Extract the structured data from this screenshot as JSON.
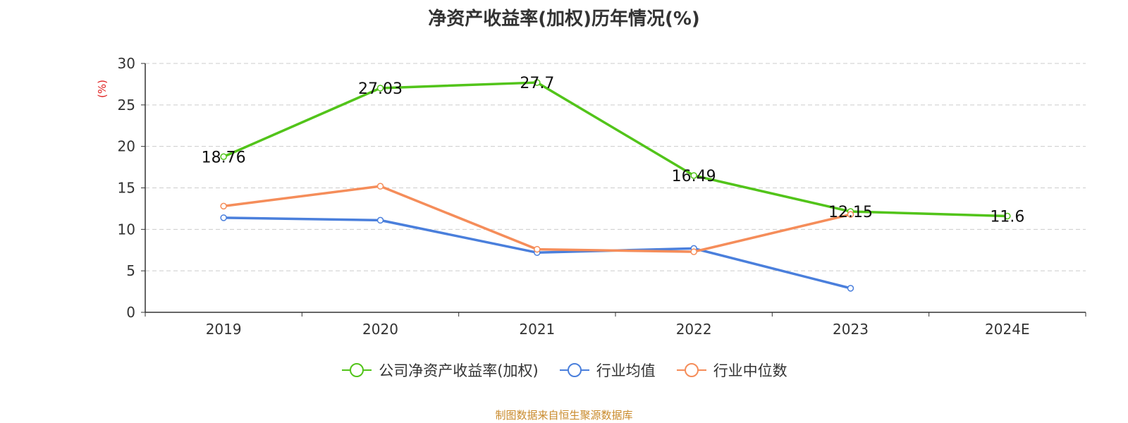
{
  "chart_data": {
    "type": "line",
    "title": "净资产收益率(加权)历年情况(%)",
    "ylabel": "(%)",
    "categories": [
      "2019",
      "2020",
      "2021",
      "2022",
      "2023",
      "2024E"
    ],
    "ylim": [
      0,
      30
    ],
    "yticks": [
      0,
      5,
      10,
      15,
      20,
      25,
      30
    ],
    "grid": "horizontal dashed",
    "legend_position": "bottom",
    "series": [
      {
        "name": "公司净资产收益率(加权)",
        "color": "#52c41a",
        "values": [
          18.76,
          27.03,
          27.7,
          16.49,
          12.15,
          11.6
        ],
        "labels": [
          "18.76",
          "27.03",
          "27.7",
          "16.49",
          "12.15",
          "11.6"
        ]
      },
      {
        "name": "行业均值",
        "color": "#4a7fdc",
        "values": [
          11.4,
          11.1,
          7.2,
          7.7,
          2.9,
          null
        ]
      },
      {
        "name": "行业中位数",
        "color": "#f58d5a",
        "values": [
          12.8,
          15.2,
          7.6,
          7.3,
          11.8,
          null
        ]
      }
    ]
  },
  "footer": {
    "text": "制图数据来自恒生聚源数据库",
    "color": "#c98a2b"
  },
  "axis_label_color": "#e02020"
}
